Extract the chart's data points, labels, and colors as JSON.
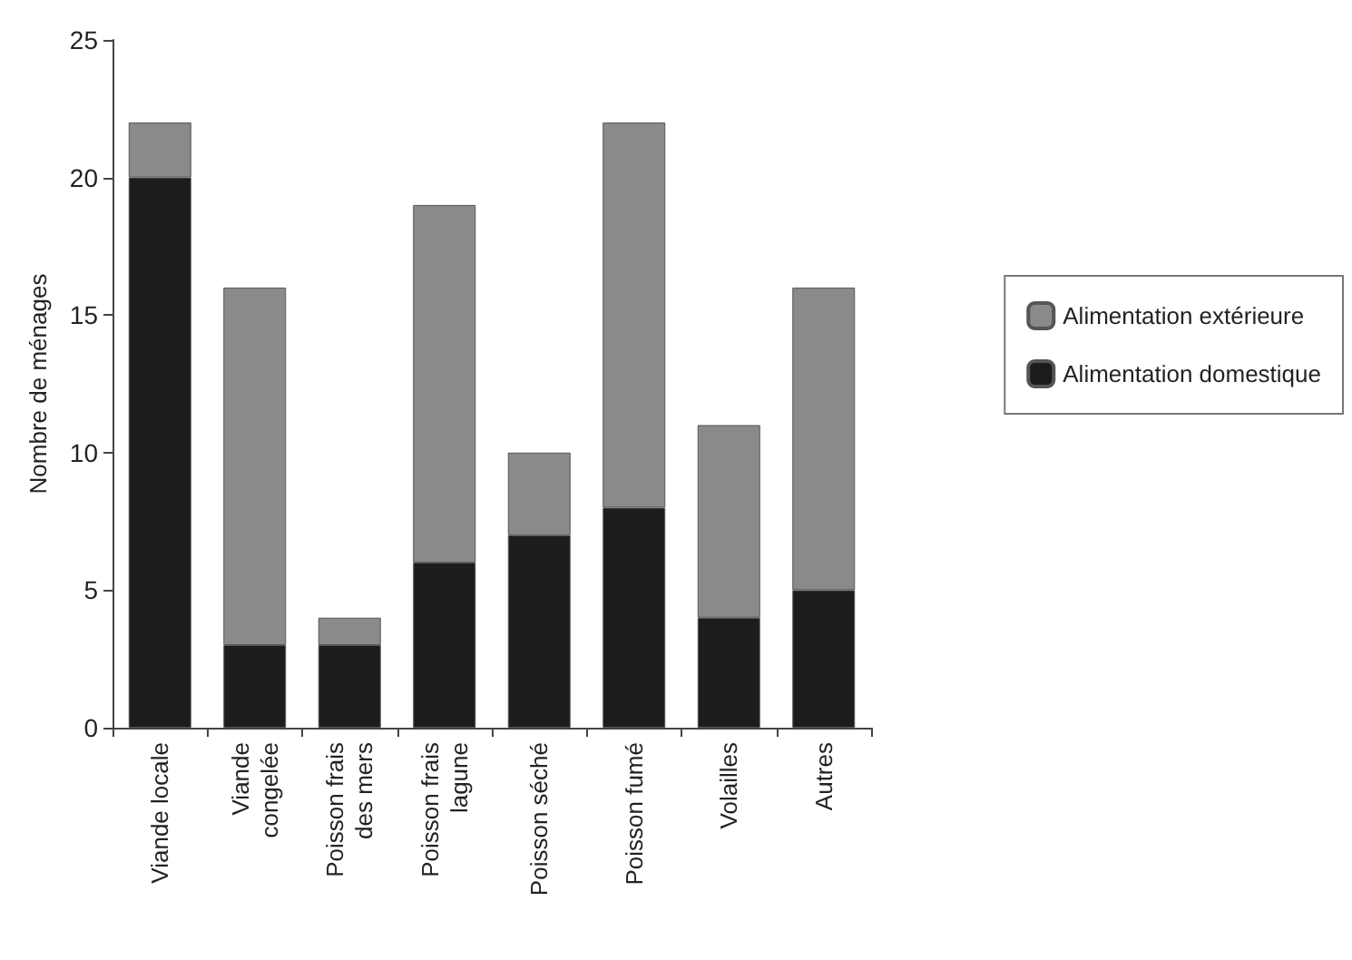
{
  "chart_data": {
    "type": "bar",
    "stacked": true,
    "ylabel": "Nombre de ménages",
    "categories": [
      "Viande locale",
      "Viande\ncongelée",
      "Poisson frais\ndes mers",
      "Poisson frais\nlagune",
      "Poisson séché",
      "Poisson fumé",
      "Volailles",
      "Autres"
    ],
    "series": [
      {
        "name": "Alimentation domestique",
        "color": "#1c1c1c",
        "values": [
          20,
          3,
          3,
          6,
          7,
          8,
          4,
          5
        ]
      },
      {
        "name": "Alimentation extérieure",
        "color": "#8a8a8a",
        "values": [
          2,
          13,
          1,
          13,
          3,
          14,
          7,
          11
        ]
      }
    ],
    "ylim": [
      0,
      25
    ],
    "yticks": [
      0,
      5,
      10,
      15,
      20,
      25
    ],
    "grid": false,
    "legend": "right"
  }
}
